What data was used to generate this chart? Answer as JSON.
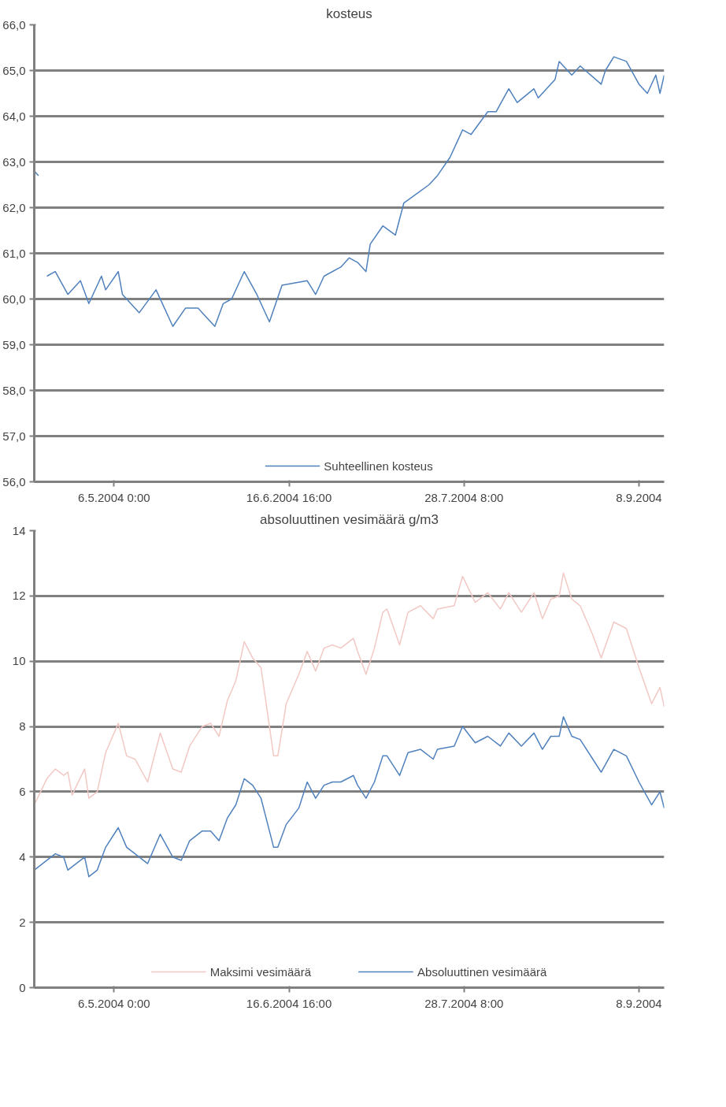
{
  "chart_data": [
    {
      "type": "line",
      "title": "kosteus",
      "legend": "bottom",
      "grid": "y",
      "line_style": "solid",
      "marker": "none",
      "xlim": [
        "2004-04-17",
        "2004-09-14"
      ],
      "xticks": [
        {
          "value": "2004-05-06T00:00",
          "label": "6.5.2004 0:00"
        },
        {
          "value": "2004-06-16T16:00",
          "label": "16.6.2004 16:00"
        },
        {
          "value": "2004-07-28T08:00",
          "label": "28.7.2004 8:00"
        },
        {
          "value": "2004-09-08T00:00",
          "label": "8.9.2004"
        }
      ],
      "ylim": [
        56,
        66
      ],
      "yticks": [
        {
          "value": 56,
          "label": "56,0"
        },
        {
          "value": 57,
          "label": "57,0"
        },
        {
          "value": 58,
          "label": "58,0"
        },
        {
          "value": 59,
          "label": "59,0"
        },
        {
          "value": 60,
          "label": "60,0"
        },
        {
          "value": 61,
          "label": "61,0"
        },
        {
          "value": 62,
          "label": "62,0"
        },
        {
          "value": 63,
          "label": "63,0"
        },
        {
          "value": 64,
          "label": "64,0"
        },
        {
          "value": 65,
          "label": "65,0"
        },
        {
          "value": 66,
          "label": "66,0"
        }
      ],
      "x": [
        "2004-04-17",
        "2004-04-18",
        "2004-04-19",
        "2004-04-20",
        "2004-04-22",
        "2004-04-25",
        "2004-04-28",
        "2004-04-30",
        "2004-05-03",
        "2004-05-04",
        "2004-05-07",
        "2004-05-08",
        "2004-05-12",
        "2004-05-16",
        "2004-05-20",
        "2004-05-23",
        "2004-05-26",
        "2004-05-30",
        "2004-06-01",
        "2004-06-03",
        "2004-06-06",
        "2004-06-09",
        "2004-06-12",
        "2004-06-15",
        "2004-06-21",
        "2004-06-23",
        "2004-06-25",
        "2004-06-29",
        "2004-07-01",
        "2004-07-03",
        "2004-07-05",
        "2004-07-06",
        "2004-07-09",
        "2004-07-12",
        "2004-07-14",
        "2004-07-17",
        "2004-07-20",
        "2004-07-22",
        "2004-07-25",
        "2004-07-28",
        "2004-07-30",
        "2004-08-03",
        "2004-08-05",
        "2004-08-08",
        "2004-08-10",
        "2004-08-14",
        "2004-08-15",
        "2004-08-19",
        "2004-08-20",
        "2004-08-23",
        "2004-08-25",
        "2004-08-30",
        "2004-08-31",
        "2004-09-02",
        "2004-09-05",
        "2004-09-08",
        "2004-09-10",
        "2004-09-12",
        "2004-09-13",
        "2004-09-14"
      ],
      "series": [
        {
          "name": "Suhteellinen kosteus",
          "color": "#4f81bd",
          "values": [
            62.8,
            62.7,
            null,
            60.5,
            60.6,
            60.1,
            60.4,
            59.9,
            60.5,
            60.2,
            60.6,
            60.1,
            59.7,
            60.2,
            59.4,
            59.8,
            59.8,
            59.4,
            59.9,
            60.0,
            60.6,
            60.1,
            59.5,
            60.3,
            60.4,
            60.1,
            60.5,
            60.7,
            60.9,
            60.8,
            60.6,
            61.2,
            61.6,
            61.4,
            62.1,
            62.3,
            62.5,
            62.7,
            63.1,
            63.7,
            63.6,
            64.1,
            64.1,
            64.6,
            64.3,
            64.6,
            64.4,
            64.8,
            65.2,
            64.9,
            65.1,
            64.7,
            65.0,
            65.3,
            65.2,
            64.7,
            64.5,
            64.9,
            64.5,
            64.9
          ]
        }
      ]
    },
    {
      "type": "line",
      "title": "absoluuttinen vesimäärä g/m3",
      "legend": "bottom",
      "grid": "y",
      "line_style": "solid",
      "marker": "none",
      "xlim": [
        "2004-04-17",
        "2004-09-14"
      ],
      "xticks": [
        {
          "value": "2004-05-06T00:00",
          "label": "6.5.2004 0:00"
        },
        {
          "value": "2004-06-16T16:00",
          "label": "16.6.2004 16:00"
        },
        {
          "value": "2004-07-28T08:00",
          "label": "28.7.2004 8:00"
        },
        {
          "value": "2004-09-08T00:00",
          "label": "8.9.2004"
        }
      ],
      "ylim": [
        0,
        14
      ],
      "yticks": [
        0,
        2,
        4,
        6,
        8,
        10,
        12,
        14
      ],
      "x": [
        "2004-04-17",
        "2004-04-20",
        "2004-04-22",
        "2004-04-24",
        "2004-04-25",
        "2004-04-26",
        "2004-04-29",
        "2004-04-30",
        "2004-05-02",
        "2004-05-04",
        "2004-05-07",
        "2004-05-09",
        "2004-05-11",
        "2004-05-14",
        "2004-05-17",
        "2004-05-20",
        "2004-05-22",
        "2004-05-24",
        "2004-05-27",
        "2004-05-29",
        "2004-05-31",
        "2004-06-02",
        "2004-06-04",
        "2004-06-06",
        "2004-06-08",
        "2004-06-10",
        "2004-06-13",
        "2004-06-14",
        "2004-06-16",
        "2004-06-19",
        "2004-06-21",
        "2004-06-23",
        "2004-06-25",
        "2004-06-27",
        "2004-06-29",
        "2004-07-02",
        "2004-07-03",
        "2004-07-05",
        "2004-07-07",
        "2004-07-09",
        "2004-07-10",
        "2004-07-13",
        "2004-07-15",
        "2004-07-18",
        "2004-07-21",
        "2004-07-22",
        "2004-07-26",
        "2004-07-28",
        "2004-07-31",
        "2004-08-03",
        "2004-08-06",
        "2004-08-08",
        "2004-08-11",
        "2004-08-14",
        "2004-08-16",
        "2004-08-18",
        "2004-08-20",
        "2004-08-21",
        "2004-08-23",
        "2004-08-25",
        "2004-08-28",
        "2004-08-30",
        "2004-09-02",
        "2004-09-05",
        "2004-09-08",
        "2004-09-11",
        "2004-09-13",
        "2004-09-14"
      ],
      "series": [
        {
          "name": "Maksimi vesimäärä",
          "color": "#f2c8c4",
          "values": [
            5.6,
            6.4,
            6.7,
            6.5,
            6.6,
            5.9,
            6.7,
            5.8,
            6.0,
            7.2,
            8.1,
            7.1,
            7.0,
            6.3,
            7.8,
            6.7,
            6.6,
            7.4,
            8.0,
            8.1,
            7.7,
            8.8,
            9.4,
            10.6,
            10.1,
            9.8,
            7.1,
            7.1,
            8.7,
            9.6,
            10.3,
            9.7,
            10.4,
            10.5,
            10.4,
            10.7,
            10.3,
            9.6,
            10.4,
            11.5,
            11.6,
            10.5,
            11.5,
            11.7,
            11.3,
            11.6,
            11.7,
            12.6,
            11.8,
            12.1,
            11.6,
            12.1,
            11.5,
            12.1,
            11.3,
            11.9,
            12.0,
            12.7,
            11.9,
            11.7,
            10.8,
            10.1,
            11.2,
            11.0,
            9.8,
            8.7,
            9.2,
            8.6
          ]
        },
        {
          "name": "Absoluuttinen vesimäärä",
          "color": "#4f81bd",
          "values": [
            3.6,
            3.9,
            4.1,
            4.0,
            3.6,
            3.7,
            4.0,
            3.4,
            3.6,
            4.3,
            4.9,
            4.3,
            4.1,
            3.8,
            4.7,
            4.0,
            3.9,
            4.5,
            4.8,
            4.8,
            4.5,
            5.2,
            5.6,
            6.4,
            6.2,
            5.8,
            4.3,
            4.3,
            5.0,
            5.5,
            6.3,
            5.8,
            6.2,
            6.3,
            6.3,
            6.5,
            6.2,
            5.8,
            6.3,
            7.1,
            7.1,
            6.5,
            7.2,
            7.3,
            7.0,
            7.3,
            7.4,
            8.0,
            7.5,
            7.7,
            7.4,
            7.8,
            7.4,
            7.8,
            7.3,
            7.7,
            7.7,
            8.3,
            7.7,
            7.6,
            7.0,
            6.6,
            7.3,
            7.1,
            6.3,
            5.6,
            6.0,
            5.5
          ]
        }
      ]
    }
  ]
}
